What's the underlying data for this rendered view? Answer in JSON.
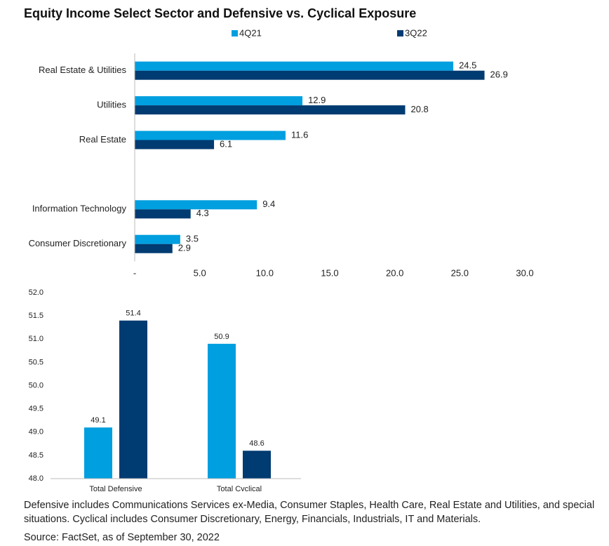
{
  "title": "Equity Income Select Sector and Defensive vs. Cyclical Exposure",
  "note": "Defensive includes Communications Services ex-Media, Consumer Staples, Health Care, Real Estate and Utilities, and special situations.  Cyclical includes Consumer Discretionary, Energy, Financials, Industrials, IT and Materials.",
  "source": "Source: FactSet, as of September 30, 2022",
  "chart_data": [
    {
      "type": "hbar",
      "categories": [
        "Real Estate & Utilities",
        "Utilities",
        "Real Estate",
        null,
        "Information Technology",
        "Consumer Discretionary"
      ],
      "series": [
        {
          "name": "4Q21",
          "color": "#009fdf",
          "values": [
            24.5,
            12.9,
            11.6,
            null,
            9.4,
            3.5
          ]
        },
        {
          "name": "3Q22",
          "color": "#003b71",
          "values": [
            26.9,
            20.8,
            6.1,
            null,
            4.3,
            2.9
          ]
        }
      ],
      "xlim": [
        0,
        30
      ],
      "xticks": [
        {
          "value": 0,
          "label": "-"
        },
        {
          "value": 5,
          "label": "5.0"
        },
        {
          "value": 10,
          "label": "10.0"
        },
        {
          "value": 15,
          "label": "15.0"
        },
        {
          "value": 20,
          "label": "20.0"
        },
        {
          "value": 25,
          "label": "25.0"
        },
        {
          "value": 30,
          "label": "30.0"
        }
      ],
      "legend": "top"
    },
    {
      "type": "bar",
      "categories": [
        "Total Defensive",
        "Total Cyclical"
      ],
      "series": [
        {
          "name": "4Q21",
          "color": "#009fdf",
          "values": [
            49.1,
            50.9
          ]
        },
        {
          "name": "3Q22",
          "color": "#003b71",
          "values": [
            51.4,
            48.6
          ]
        }
      ],
      "ylim": [
        48,
        52
      ],
      "yticks": [
        {
          "value": 48,
          "label": "48.0"
        },
        {
          "value": 48.5,
          "label": "48.5"
        },
        {
          "value": 49,
          "label": "49.0"
        },
        {
          "value": 49.5,
          "label": "49.5"
        },
        {
          "value": 50,
          "label": "50.0"
        },
        {
          "value": 50.5,
          "label": "50.5"
        },
        {
          "value": 51,
          "label": "51.0"
        },
        {
          "value": 51.5,
          "label": "51.5"
        },
        {
          "value": 52,
          "label": "52.0"
        }
      ],
      "legend": "none"
    }
  ]
}
